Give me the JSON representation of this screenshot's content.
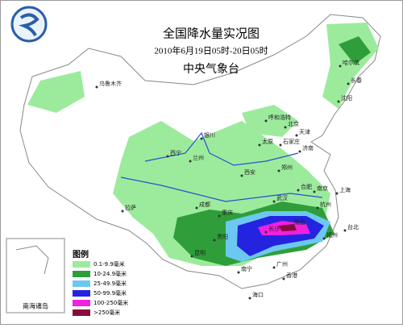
{
  "header": {
    "title": "全国降水量实况图",
    "period": "2010年6月19日05时-20日05时",
    "agency": "中央气象台"
  },
  "legend": {
    "title": "图例",
    "items": [
      {
        "label": "0.1-9.9毫米",
        "color": "#9ceb9c"
      },
      {
        "label": "10-24.9毫米",
        "color": "#2f9e3a"
      },
      {
        "label": "25-49.9毫米",
        "color": "#6cc8f0"
      },
      {
        "label": "50-99.9毫米",
        "color": "#2424e0"
      },
      {
        "label": "100-250毫米",
        "color": "#f020e0"
      },
      {
        "label": ">250毫米",
        "color": "#8a0a3a"
      }
    ]
  },
  "inset": {
    "label": "南海诸岛"
  },
  "cities": [
    "乌鲁木齐",
    "哈尔滨",
    "长春",
    "沈阳",
    "呼和浩特",
    "北京",
    "天津",
    "石家庄",
    "太原",
    "济南",
    "银川",
    "西宁",
    "兰州",
    "西安",
    "郑州",
    "合肥",
    "南京",
    "上海",
    "武汉",
    "杭州",
    "拉萨",
    "成都",
    "重庆",
    "长沙",
    "南昌",
    "福州",
    "贵阳",
    "昆明",
    "南宁",
    "广州",
    "香港",
    "海口",
    "台北"
  ]
}
